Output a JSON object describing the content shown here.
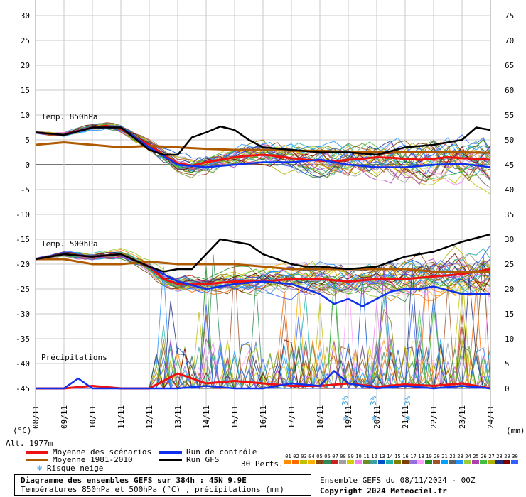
{
  "chart_data": {
    "type": "line",
    "x_dates": [
      "08/11",
      "09/11",
      "10/11",
      "11/11",
      "12/11",
      "13/11",
      "14/11",
      "15/11",
      "16/11",
      "17/11",
      "18/11",
      "19/11",
      "20/11",
      "21/11",
      "22/11",
      "23/11",
      "24/11"
    ],
    "x_days": [
      0,
      1,
      2,
      3,
      4,
      5,
      6,
      7,
      8,
      9,
      10,
      11,
      12,
      13,
      14,
      15,
      16
    ],
    "left_axis": {
      "label": "(°C)",
      "ticks": [
        30,
        25,
        20,
        15,
        10,
        5,
        0,
        -5,
        -10,
        -15,
        -20,
        -25,
        -30,
        -35,
        -40,
        -45
      ],
      "range": [
        -45,
        30
      ]
    },
    "right_axis": {
      "label": "(mm)",
      "ticks": [
        75,
        70,
        65,
        60,
        55,
        50,
        45,
        40,
        35,
        30,
        25,
        20,
        15,
        10,
        5,
        0
      ],
      "range": [
        0,
        75
      ]
    },
    "alt_label": "Alt. 1977m",
    "section_labels": {
      "t850": "Temp. 850hPa",
      "t500": "Temp. 500hPa",
      "precip": "Précipitations"
    },
    "series": [
      {
        "name": "Moyenne des scénarios",
        "group": "t850",
        "color": "#ee1111",
        "x": [
          0,
          0.5,
          1,
          1.5,
          2,
          2.5,
          3,
          3.5,
          4,
          4.5,
          5,
          5.5,
          6,
          6.5,
          7,
          7.5,
          8,
          8.5,
          9,
          9.5,
          10,
          10.5,
          11,
          11.5,
          12,
          12.5,
          13,
          13.5,
          14,
          14.5,
          15,
          15.5,
          16
        ],
        "y": [
          6.5,
          6.2,
          6.0,
          6.8,
          7.5,
          7.8,
          7.2,
          5.5,
          4.0,
          2.0,
          0.3,
          -0.2,
          0.5,
          1.0,
          1.5,
          1.8,
          2.0,
          1.7,
          1.3,
          1.0,
          0.8,
          0.7,
          1.0,
          1.2,
          1.5,
          1.4,
          1.2,
          1.0,
          1.2,
          1.5,
          1.3,
          1.2,
          1.0
        ]
      },
      {
        "name": "Moyenne 1981-2010",
        "group": "t850",
        "color": "#b05a00",
        "x": [
          0,
          1,
          2,
          3,
          4,
          5,
          6,
          7,
          8,
          9,
          10,
          11,
          12,
          13,
          14,
          15,
          16
        ],
        "y": [
          4.0,
          4.5,
          4.0,
          3.5,
          3.8,
          3.5,
          3.2,
          3.0,
          3.0,
          2.8,
          2.8,
          2.6,
          2.6,
          2.5,
          2.5,
          2.5,
          2.4
        ]
      },
      {
        "name": "Run de contrôle",
        "group": "t850",
        "color": "#1030ee",
        "x": [
          0,
          1,
          2,
          3,
          4,
          5,
          6,
          7,
          8,
          9,
          10,
          11,
          12,
          13,
          14,
          15,
          16
        ],
        "y": [
          6.5,
          6.0,
          7.5,
          7.5,
          3.5,
          0.0,
          -0.5,
          0.0,
          0.5,
          0.5,
          1.0,
          0.0,
          -0.5,
          -0.5,
          0.0,
          0.2,
          -0.5
        ]
      },
      {
        "name": "Run GFS",
        "group": "t850",
        "color": "#000000",
        "x": [
          0,
          1,
          2,
          3,
          4,
          4.5,
          5,
          5.5,
          6,
          6.5,
          7,
          7.5,
          8,
          9,
          10,
          11,
          12,
          13,
          14,
          15,
          15.5,
          16
        ],
        "y": [
          6.5,
          6.0,
          7.5,
          7.5,
          3.0,
          2.0,
          2.0,
          5.5,
          6.5,
          7.7,
          7.0,
          5.0,
          3.5,
          3.0,
          2.5,
          2.5,
          2.0,
          3.5,
          4.0,
          5.0,
          7.5,
          7.0
        ]
      },
      {
        "name": "Moyenne des scénarios",
        "group": "t500",
        "color": "#ee1111",
        "x": [
          0,
          1,
          2,
          3,
          4,
          4.5,
          5,
          5.5,
          6,
          7,
          8,
          9,
          10,
          11,
          12,
          13,
          14,
          15,
          16
        ],
        "y": [
          -19.0,
          -18.0,
          -18.5,
          -18.0,
          -20.5,
          -23.0,
          -24.0,
          -24.0,
          -24.0,
          -23.5,
          -23.5,
          -23.0,
          -23.0,
          -23.5,
          -23.0,
          -23.0,
          -22.5,
          -22.0,
          -21.0
        ]
      },
      {
        "name": "Moyenne 1981-2010",
        "group": "t500",
        "color": "#b05a00",
        "x": [
          0,
          1,
          2,
          3,
          4,
          5,
          6,
          7,
          8,
          9,
          10,
          11,
          12,
          13,
          14,
          15,
          16
        ],
        "y": [
          -19.0,
          -19.0,
          -20.0,
          -20.0,
          -19.5,
          -20.0,
          -20.0,
          -20.0,
          -20.5,
          -21.0,
          -21.0,
          -21.0,
          -21.0,
          -21.0,
          -21.5,
          -21.5,
          -21.5
        ]
      },
      {
        "name": "Run de contrôle",
        "group": "t500",
        "color": "#1030ee",
        "x": [
          0,
          1,
          2,
          3,
          4,
          5,
          6,
          7,
          8,
          9,
          10,
          10.5,
          11,
          11.5,
          12,
          12.5,
          13,
          13.5,
          14,
          15,
          16
        ],
        "y": [
          -19.0,
          -18.0,
          -18.5,
          -18.0,
          -20.5,
          -23.5,
          -25.0,
          -24.0,
          -23.5,
          -24.0,
          -26.0,
          -28.0,
          -27.0,
          -28.5,
          -27.0,
          -25.5,
          -25.0,
          -25.0,
          -24.5,
          -26.0,
          -26.0
        ]
      },
      {
        "name": "Run GFS",
        "group": "t500",
        "color": "#000000",
        "x": [
          0,
          1,
          2,
          3,
          4,
          4.5,
          5,
          5.5,
          6,
          6.5,
          7,
          7.5,
          8,
          8.5,
          9,
          9.5,
          10,
          11,
          12,
          13,
          14,
          15,
          16
        ],
        "y": [
          -19.0,
          -18.0,
          -18.5,
          -18.0,
          -20.5,
          -21.5,
          -21.0,
          -21.0,
          -18.0,
          -15.0,
          -15.5,
          -16.0,
          -18.0,
          -19.0,
          -20.0,
          -20.5,
          -20.5,
          -21.0,
          -20.5,
          -18.5,
          -17.5,
          -15.5,
          -14.0
        ]
      },
      {
        "name": "Moyenne des scénarios",
        "group": "precip",
        "color": "#ee1111",
        "x": [
          0,
          1,
          2,
          3,
          4,
          4.5,
          5,
          5.5,
          6,
          7,
          8,
          9,
          10,
          11,
          12,
          13,
          14,
          15,
          16
        ],
        "y": [
          0.0,
          0.0,
          0.5,
          0.0,
          0.0,
          1.5,
          3.0,
          2.0,
          1.0,
          1.5,
          1.0,
          0.5,
          0.5,
          1.0,
          0.3,
          0.8,
          0.5,
          1.0,
          0.0
        ]
      },
      {
        "name": "Run de contrôle",
        "group": "precip",
        "color": "#1030ee",
        "x": [
          0,
          1,
          1.5,
          2,
          3,
          4,
          5,
          6,
          7,
          8,
          9,
          10,
          10.5,
          11,
          12,
          13,
          14,
          15,
          16
        ],
        "y": [
          0.0,
          0.0,
          2.0,
          0.0,
          0.0,
          0.0,
          0.0,
          0.5,
          0.0,
          0.0,
          1.0,
          0.5,
          3.5,
          1.0,
          0.0,
          0.5,
          0.0,
          0.5,
          0.0
        ]
      }
    ],
    "snow_risk_markers": [
      {
        "day": 10.9,
        "label": "3%"
      },
      {
        "day": 11.9,
        "label": "3%"
      },
      {
        "day": 13.1,
        "label": "3%"
      }
    ],
    "grid": true
  },
  "legend": {
    "mean": "Moyenne des scénarios",
    "control": "Run de contrôle",
    "climo": "Moyenne 1981-2010",
    "gfs": "Run GFS",
    "snow": "Risque neige",
    "snow_icon": "snowflake-icon"
  },
  "perts": {
    "label": "30 Perts.",
    "numbers": [
      "01",
      "02",
      "03",
      "04",
      "05",
      "06",
      "07",
      "08",
      "09",
      "10",
      "11",
      "12",
      "13",
      "14",
      "15",
      "16",
      "17",
      "18",
      "19",
      "20",
      "21",
      "22",
      "23",
      "24",
      "25",
      "26",
      "27",
      "28",
      "29",
      "30"
    ],
    "colors": [
      "#ff8c00",
      "#ff6a00",
      "#c0c000",
      "#ffb000",
      "#8b4513",
      "#2e8b57",
      "#cc2222",
      "#a0a0a0",
      "#d0d000",
      "#ee82ee",
      "#6b8e23",
      "#40a0a0",
      "#0050c8",
      "#20b2aa",
      "#808000",
      "#7b3f00",
      "#9370db",
      "#ffa0ff",
      "#228b22",
      "#a0522d",
      "#00a0ff",
      "#606060",
      "#1e90ff",
      "#9acd32",
      "#b040b0",
      "#40c040",
      "#b0b000",
      "#203080",
      "#800000",
      "#3060ff"
    ]
  },
  "title": {
    "main": "Diagramme des ensembles GEFS sur 384h : 45N 9.9E",
    "sub": "Températures 850hPa et 500hPa (°C) , précipitations (mm)"
  },
  "info": {
    "run": "Ensemble GEFS du 08/11/2024 - 00Z",
    "copyright": "Copyright 2024 Meteociel.fr"
  }
}
